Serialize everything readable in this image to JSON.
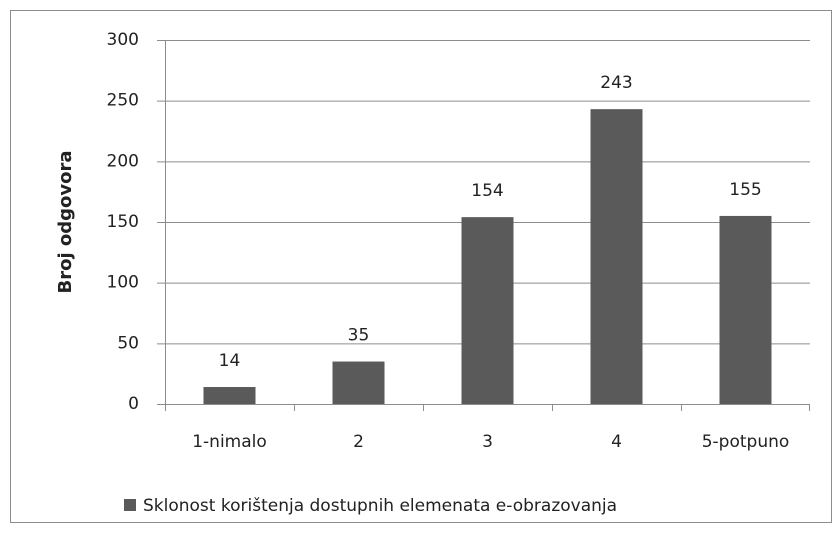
{
  "chart_data": {
    "type": "bar",
    "y_label": "Broj odgovora",
    "categories": [
      "1-nimalo",
      "2",
      "3",
      "4",
      "5-potpuno"
    ],
    "series": [
      {
        "name": "Sklonost korištenja dostupnih elemenata e-obrazovanja",
        "color": "#5a5a5a",
        "values": [
          14,
          35,
          154,
          243,
          155
        ]
      }
    ],
    "ylim": [
      0,
      300
    ],
    "yticks": [
      0,
      50,
      100,
      150,
      200,
      250,
      300
    ],
    "grid": true,
    "legend": "bottom",
    "data_labels": true
  }
}
